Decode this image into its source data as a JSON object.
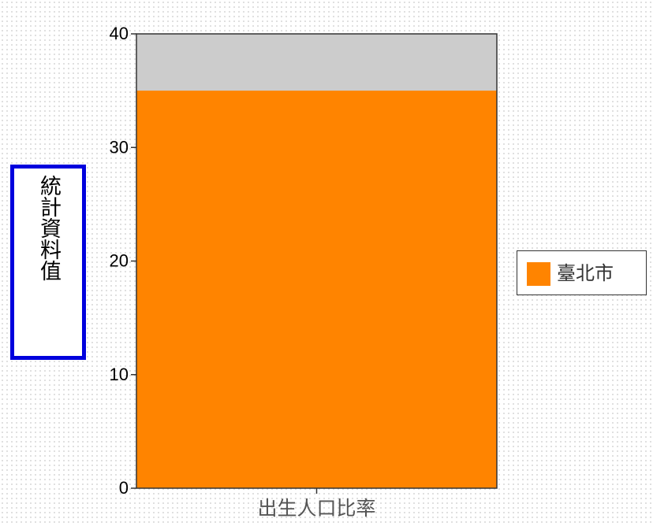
{
  "chart_data": {
    "type": "bar",
    "stacked": true,
    "categories": [
      "出生人口比率"
    ],
    "series": [
      {
        "name": "臺北市",
        "values": [
          35
        ],
        "color": "#ff8400"
      }
    ],
    "background_fill_color": "#cccccc",
    "ylabel": "統計資料值",
    "xlabel": "",
    "ylim": [
      0,
      40
    ],
    "yticks": [
      0,
      10,
      20,
      30,
      40
    ],
    "grid": false,
    "legend_position": "right"
  }
}
